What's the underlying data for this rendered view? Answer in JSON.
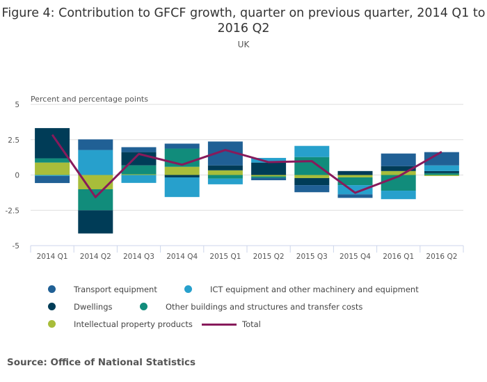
{
  "chart_data": {
    "type": "bar",
    "stacked": true,
    "title": "Figure 4: Contribution to GFCF growth, quarter on previous quarter, 2014 Q1 to 2016 Q2",
    "subtitle": "UK",
    "ylabel": "Percent and percentage points",
    "ylim": [
      -5,
      5
    ],
    "yticks": [
      "5",
      "2.5",
      "0",
      "-2.5",
      "-5"
    ],
    "grid": true,
    "legend_position": "bottom",
    "categories": [
      "2014 Q1",
      "2014 Q2",
      "2014 Q3",
      "2014 Q4",
      "2015 Q1",
      "2015 Q2",
      "2015 Q3",
      "2015 Q4",
      "2016 Q1",
      "2016 Q2"
    ],
    "series": [
      {
        "name": "Intellectual property products",
        "color": "#a8bd3a",
        "values": [
          0.88,
          -1.01,
          0.05,
          0.58,
          0.33,
          -0.1,
          -0.22,
          -0.17,
          0.28,
          -0.07
        ]
      },
      {
        "name": "Other buildings and structures and transfer costs",
        "color": "#118c7b",
        "values": [
          0.3,
          -1.49,
          0.63,
          1.29,
          -0.26,
          -0.1,
          1.27,
          -0.55,
          -1.11,
          0.13
        ]
      },
      {
        "name": "Dwellings",
        "color": "#003c57",
        "values": [
          2.14,
          -1.64,
          0.94,
          -0.17,
          0.35,
          0.88,
          -0.5,
          0.28,
          0.35,
          0.15
        ]
      },
      {
        "name": "ICT equipment and other machinery and equipment",
        "color": "#27a0cc",
        "values": [
          -0.07,
          1.77,
          -0.56,
          -1.39,
          -0.4,
          0.33,
          0.79,
          -0.65,
          -0.6,
          0.4
        ]
      },
      {
        "name": "Transport equipment",
        "color": "#206095",
        "values": [
          -0.5,
          0.75,
          0.35,
          0.35,
          1.69,
          -0.17,
          -0.5,
          -0.25,
          0.89,
          0.94
        ]
      }
    ],
    "line": {
      "name": "Total",
      "color": "#871a5b",
      "values": [
        2.85,
        -1.57,
        1.49,
        0.73,
        1.77,
        0.91,
        0.98,
        -1.26,
        -0.1,
        1.64
      ]
    }
  },
  "legend": [
    {
      "label": "Transport equipment",
      "color": "#206095"
    },
    {
      "label": "ICT equipment and other machinery and equipment",
      "color": "#27a0cc"
    },
    {
      "label": "Dwellings",
      "color": "#003c57"
    },
    {
      "label": "Other buildings and structures and transfer costs",
      "color": "#118c7b"
    },
    {
      "label": "Intellectual property products",
      "color": "#a8bd3a"
    },
    {
      "label": "Total",
      "color": "#871a5b"
    }
  ],
  "source": "Source: Office of National Statistics"
}
